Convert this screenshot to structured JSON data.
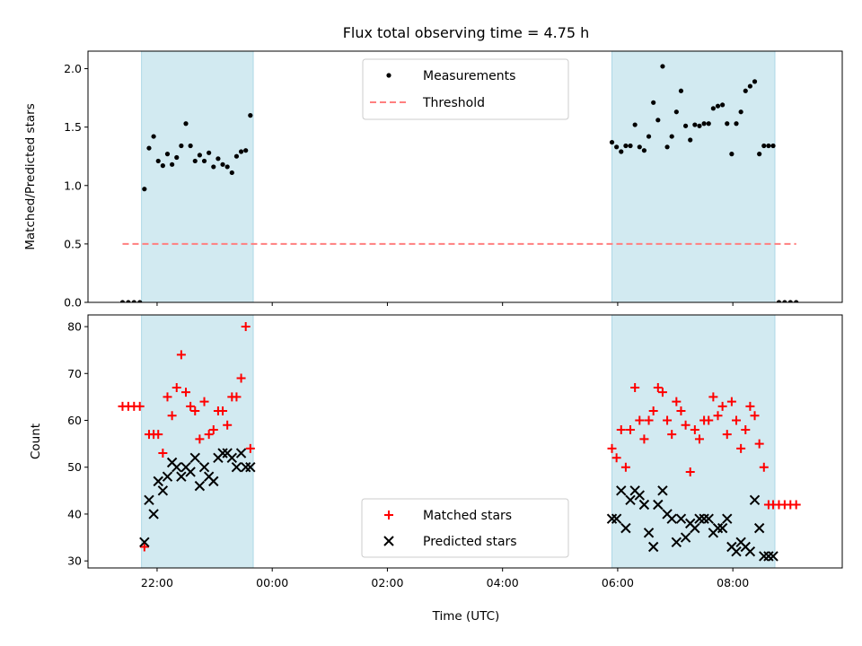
{
  "chart_data": {
    "title": "Flux total observing time = 4.75 h",
    "xlabel": "Time (UTC)",
    "x_unit": "hours relative to 00:00 UTC (negative = previous day)",
    "xlim": [
      -3.2,
      9.9
    ],
    "x_ticks": [
      {
        "value": -2,
        "label": "22:00"
      },
      {
        "value": 0,
        "label": "00:00"
      },
      {
        "value": 2,
        "label": "02:00"
      },
      {
        "value": 4,
        "label": "04:00"
      },
      {
        "value": 6,
        "label": "06:00"
      },
      {
        "value": 8,
        "label": "08:00"
      }
    ],
    "shaded_intervals": [
      [
        -2.27,
        -0.33
      ],
      [
        5.9,
        8.73
      ]
    ],
    "shade_color": "#add8e6",
    "panels": [
      {
        "type": "scatter",
        "ylabel": "Matched/Predicted stars",
        "ylim": [
          0,
          2.15
        ],
        "y_ticks": [
          {
            "value": 0,
            "label": "0.0"
          },
          {
            "value": 0.5,
            "label": "0.5"
          },
          {
            "value": 1.0,
            "label": "1.0"
          },
          {
            "value": 1.5,
            "label": "1.5"
          },
          {
            "value": 2.0,
            "label": "2.0"
          }
        ],
        "legend": {
          "position": "upper center",
          "entries": [
            "Measurements",
            "Threshold"
          ]
        },
        "threshold": {
          "name": "Threshold",
          "y": 0.5,
          "x_range": [
            -2.6,
            9.1
          ],
          "color": "#ff7f7f",
          "style": "dashed"
        },
        "series": [
          {
            "name": "Measurements",
            "marker": "dot",
            "color": "#000000",
            "x": [
              -2.6,
              -2.5,
              -2.4,
              -2.3,
              -2.22,
              -2.14,
              -2.06,
              -1.98,
              -1.9,
              -1.82,
              -1.74,
              -1.66,
              -1.58,
              -1.5,
              -1.42,
              -1.34,
              -1.26,
              -1.18,
              -1.1,
              -1.02,
              -0.94,
              -0.86,
              -0.78,
              -0.7,
              -0.62,
              -0.54,
              -0.46,
              -0.38,
              5.9,
              5.98,
              6.06,
              6.14,
              6.22,
              6.3,
              6.38,
              6.46,
              6.54,
              6.62,
              6.7,
              6.78,
              6.86,
              6.94,
              7.02,
              7.1,
              7.18,
              7.26,
              7.34,
              7.42,
              7.5,
              7.58,
              7.66,
              7.74,
              7.82,
              7.9,
              7.98,
              8.06,
              8.14,
              8.22,
              8.3,
              8.38,
              8.46,
              8.54,
              8.62,
              8.7,
              8.8,
              8.9,
              9.0,
              9.1
            ],
            "y": [
              0,
              0,
              0,
              0,
              0.97,
              1.32,
              1.42,
              1.21,
              1.17,
              1.27,
              1.18,
              1.24,
              1.34,
              1.53,
              1.34,
              1.21,
              1.26,
              1.21,
              1.28,
              1.16,
              1.23,
              1.18,
              1.16,
              1.11,
              1.25,
              1.29,
              1.3,
              1.6,
              1.37,
              1.33,
              1.29,
              1.34,
              1.34,
              1.52,
              1.33,
              1.3,
              1.42,
              1.71,
              1.56,
              2.02,
              1.33,
              1.42,
              1.63,
              1.81,
              1.51,
              1.39,
              1.52,
              1.51,
              1.53,
              1.53,
              1.66,
              1.68,
              1.69,
              1.53,
              1.27,
              1.53,
              1.63,
              1.81,
              1.85,
              1.89,
              1.27,
              1.34,
              1.34,
              1.34,
              0,
              0,
              0,
              0
            ]
          }
        ]
      },
      {
        "type": "scatter",
        "ylabel": "Count",
        "ylim": [
          28.5,
          82.5
        ],
        "y_ticks": [
          {
            "value": 30,
            "label": "30"
          },
          {
            "value": 40,
            "label": "40"
          },
          {
            "value": 50,
            "label": "50"
          },
          {
            "value": 60,
            "label": "60"
          },
          {
            "value": 70,
            "label": "70"
          },
          {
            "value": 80,
            "label": "80"
          }
        ],
        "legend": {
          "position": "lower center",
          "entries": [
            "Matched stars",
            "Predicted stars"
          ]
        },
        "series": [
          {
            "name": "Matched stars",
            "marker": "plus",
            "color": "#ff0000",
            "x": [
              -2.6,
              -2.5,
              -2.4,
              -2.3,
              -2.22,
              -2.14,
              -2.06,
              -1.98,
              -1.9,
              -1.82,
              -1.74,
              -1.66,
              -1.58,
              -1.5,
              -1.42,
              -1.34,
              -1.26,
              -1.18,
              -1.1,
              -1.02,
              -0.94,
              -0.86,
              -0.78,
              -0.7,
              -0.62,
              -0.54,
              -0.46,
              -0.38,
              5.9,
              5.98,
              6.06,
              6.14,
              6.22,
              6.3,
              6.38,
              6.46,
              6.54,
              6.62,
              6.7,
              6.78,
              6.86,
              6.94,
              7.02,
              7.1,
              7.18,
              7.26,
              7.34,
              7.42,
              7.5,
              7.58,
              7.66,
              7.74,
              7.82,
              7.9,
              7.98,
              8.06,
              8.14,
              8.22,
              8.3,
              8.38,
              8.46,
              8.54,
              8.62,
              8.7,
              8.8,
              8.9,
              9.0,
              9.1
            ],
            "y": [
              63,
              63,
              63,
              63,
              33,
              57,
              57,
              57,
              53,
              65,
              61,
              67,
              74,
              66,
              63,
              62,
              56,
              64,
              57,
              58,
              62,
              62,
              59,
              65,
              65,
              69,
              80,
              54,
              54,
              52,
              58,
              50,
              58,
              67,
              60,
              56,
              60,
              62,
              67,
              66,
              60,
              57,
              64,
              62,
              59,
              49,
              58,
              56,
              60,
              60,
              65,
              61,
              63,
              57,
              64,
              60,
              54,
              58,
              63,
              61,
              55,
              50,
              42,
              42,
              42,
              42,
              42,
              42
            ]
          },
          {
            "name": "Predicted stars",
            "marker": "x",
            "color": "#000000",
            "x": [
              -2.22,
              -2.14,
              -2.06,
              -1.98,
              -1.9,
              -1.82,
              -1.74,
              -1.66,
              -1.58,
              -1.5,
              -1.42,
              -1.34,
              -1.26,
              -1.18,
              -1.1,
              -1.02,
              -0.94,
              -0.86,
              -0.78,
              -0.7,
              -0.62,
              -0.54,
              -0.46,
              -0.38,
              5.9,
              5.98,
              6.06,
              6.14,
              6.22,
              6.3,
              6.38,
              6.46,
              6.54,
              6.62,
              6.7,
              6.78,
              6.86,
              6.94,
              7.02,
              7.1,
              7.18,
              7.26,
              7.34,
              7.42,
              7.5,
              7.58,
              7.66,
              7.74,
              7.82,
              7.9,
              7.98,
              8.06,
              8.14,
              8.22,
              8.3,
              8.38,
              8.46,
              8.54,
              8.62,
              8.7
            ],
            "y": [
              34,
              43,
              40,
              47,
              45,
              48,
              51,
              50,
              48,
              50,
              49,
              52,
              46,
              50,
              48,
              47,
              52,
              53,
              53,
              52,
              50,
              53,
              50,
              50,
              39,
              39,
              45,
              37,
              43,
              45,
              44,
              42,
              36,
              33,
              42,
              45,
              40,
              39,
              34,
              39,
              35,
              38,
              37,
              39,
              39,
              39,
              36,
              37,
              37,
              39,
              33,
              32,
              34,
              33,
              32,
              43,
              37,
              31,
              31,
              31
            ]
          }
        ]
      }
    ]
  }
}
